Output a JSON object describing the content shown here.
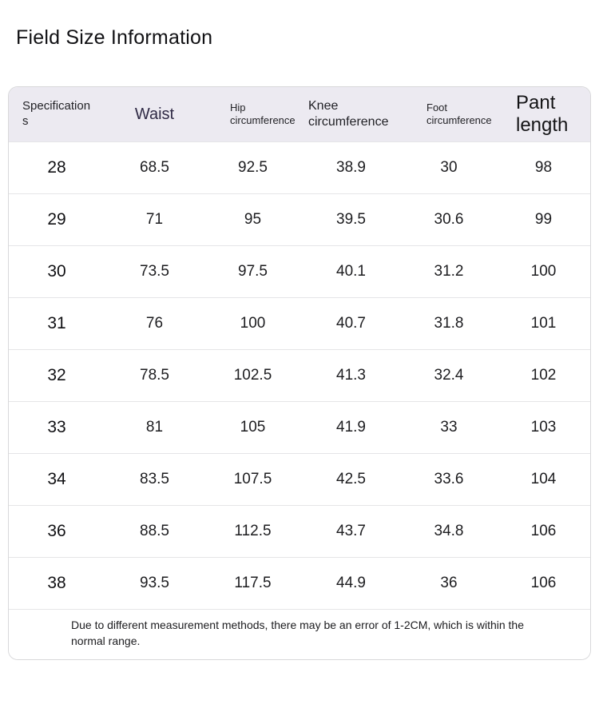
{
  "page": {
    "title": "Field Size Information"
  },
  "table": {
    "columns": [
      {
        "id": "spec",
        "label": "Specifications"
      },
      {
        "id": "waist",
        "label": "Waist"
      },
      {
        "id": "hip",
        "label": "Hip circumference"
      },
      {
        "id": "knee",
        "label": "Knee circumference"
      },
      {
        "id": "foot",
        "label": "Foot circumference"
      },
      {
        "id": "pant",
        "label": "Pant length"
      }
    ],
    "rows": [
      [
        "28",
        "68.5",
        "92.5",
        "38.9",
        "30",
        "98"
      ],
      [
        "29",
        "71",
        "95",
        "39.5",
        "30.6",
        "99"
      ],
      [
        "30",
        "73.5",
        "97.5",
        "40.1",
        "31.2",
        "100"
      ],
      [
        "31",
        "76",
        "100",
        "40.7",
        "31.8",
        "101"
      ],
      [
        "32",
        "78.5",
        "102.5",
        "41.3",
        "32.4",
        "102"
      ],
      [
        "33",
        "81",
        "105",
        "41.9",
        "33",
        "103"
      ],
      [
        "34",
        "83.5",
        "107.5",
        "42.5",
        "33.6",
        "104"
      ],
      [
        "36",
        "88.5",
        "112.5",
        "43.7",
        "34.8",
        "106"
      ],
      [
        "38",
        "93.5",
        "117.5",
        "44.9",
        "36",
        "106"
      ]
    ],
    "note": "Due to different measurement methods, there may be an error of 1-2CM, which is within the normal range."
  },
  "colors": {
    "header_background": "#eceaf1",
    "waist_header_text": "#2f2a45",
    "card_border": "#d8d8da",
    "row_divider": "#e5e5e7",
    "body_text": "#1c1c1f"
  }
}
